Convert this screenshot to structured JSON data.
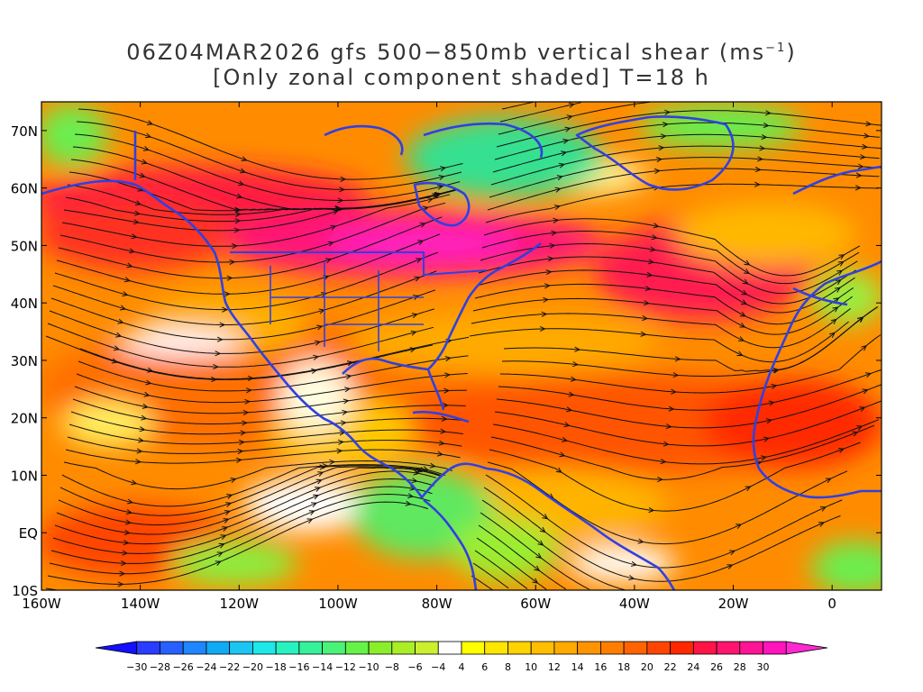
{
  "title": {
    "line1_prefix": "06Z04MAR2026 gfs 500−850mb vertical shear (ms",
    "line1_sup": "−1",
    "line1_suffix": ")",
    "line2": "[Only zonal component shaded] T=18 h"
  },
  "map": {
    "lon_range": [
      -160,
      10
    ],
    "lat_range": [
      -10,
      75
    ],
    "lat_labels": [
      {
        "lat": 70,
        "text": "70N"
      },
      {
        "lat": 60,
        "text": "60N"
      },
      {
        "lat": 50,
        "text": "50N"
      },
      {
        "lat": 40,
        "text": "40N"
      },
      {
        "lat": 30,
        "text": "30N"
      },
      {
        "lat": 20,
        "text": "20N"
      },
      {
        "lat": 10,
        "text": "10N"
      },
      {
        "lat": 0,
        "text": "EQ"
      },
      {
        "lat": -10,
        "text": "10S"
      }
    ],
    "lon_labels": [
      {
        "lon": -160,
        "text": "160W"
      },
      {
        "lon": -140,
        "text": "140W"
      },
      {
        "lon": -120,
        "text": "120W"
      },
      {
        "lon": -100,
        "text": "100W"
      },
      {
        "lon": -80,
        "text": "80W"
      },
      {
        "lon": -60,
        "text": "60W"
      },
      {
        "lon": -40,
        "text": "40W"
      },
      {
        "lon": -20,
        "text": "20W"
      },
      {
        "lon": 0,
        "text": "0"
      }
    ]
  },
  "colorbar": {
    "colors": [
      "#1410ff",
      "#2a3cff",
      "#2860ff",
      "#1e86ff",
      "#10aaf5",
      "#1cc6f2",
      "#1ee8e8",
      "#28f2c0",
      "#36f29a",
      "#4af278",
      "#66f248",
      "#8aee2c",
      "#aaee28",
      "#ccef30",
      "#ffffff",
      "#ffff00",
      "#ffe600",
      "#ffd200",
      "#ffbe00",
      "#ffaa00",
      "#ff9400",
      "#ff7e00",
      "#ff6400",
      "#ff4600",
      "#ff2800",
      "#ff1446",
      "#ff1470",
      "#ff1496",
      "#ff14be",
      "#ff28d2"
    ],
    "labels": [
      "−30",
      "−28",
      "−26",
      "−24",
      "−22",
      "−20",
      "−18",
      "−16",
      "−14",
      "−12",
      "−10",
      "−8",
      "−6",
      "−4",
      "4",
      "6",
      "8",
      "10",
      "12",
      "14",
      "16",
      "18",
      "20",
      "22",
      "24",
      "26",
      "28",
      "30"
    ]
  }
}
